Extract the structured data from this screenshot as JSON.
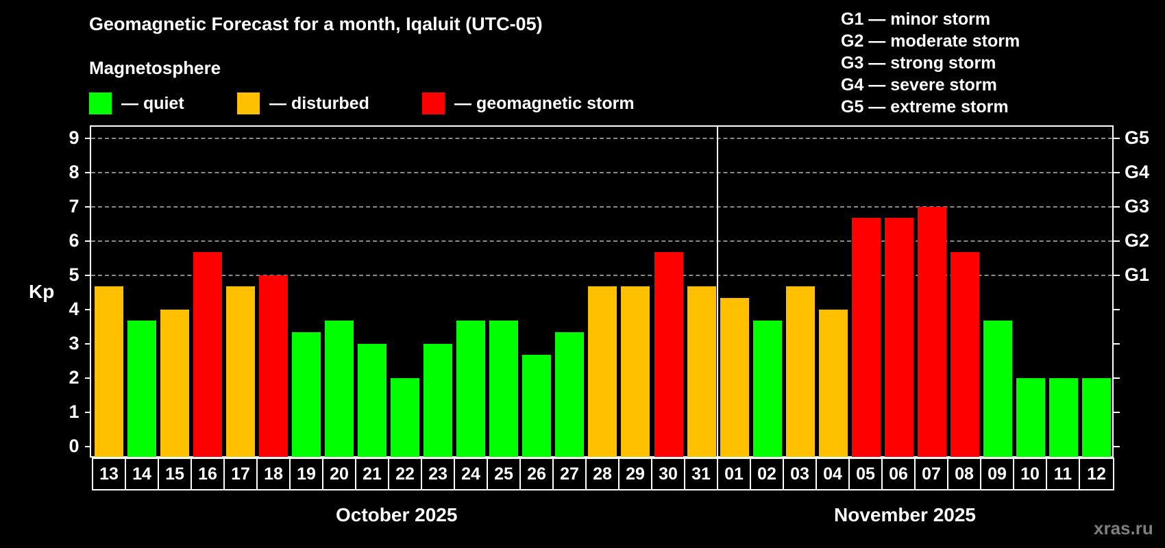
{
  "title": "Geomagnetic Forecast for a month, Iqaluit (UTC-05)",
  "magnetosphere_label": "Magnetosphere",
  "legend": [
    {
      "label": "— quiet",
      "color": "#00ff00"
    },
    {
      "label": "— disturbed",
      "color": "#ffc000"
    },
    {
      "label": "— geomagnetic storm",
      "color": "#ff0000"
    }
  ],
  "g_legend": [
    "G1 — minor storm",
    "G2 — moderate storm",
    "G3 — strong storm",
    "G4 — severe storm",
    "G5 — extreme storm"
  ],
  "watermark": "xras.ru",
  "colors": {
    "quiet": "#00ff00",
    "disturbed": "#ffc000",
    "storm": "#ff0000",
    "background": "#000000",
    "grid": "#8a8a8a"
  },
  "chart_data": {
    "type": "bar",
    "title": "Geomagnetic Forecast for a month, Iqaluit (UTC-05)",
    "xlabel": "",
    "ylabel": "Kp",
    "ylim": [
      0,
      9
    ],
    "yticks": [
      0,
      1,
      2,
      3,
      4,
      5,
      6,
      7,
      8,
      9
    ],
    "right_axis_ticks": [
      {
        "value": 5,
        "label": "G1"
      },
      {
        "value": 6,
        "label": "G2"
      },
      {
        "value": 7,
        "label": "G3"
      },
      {
        "value": 8,
        "label": "G4"
      },
      {
        "value": 9,
        "label": "G5"
      }
    ],
    "grid": "horizontal dashed at 5,6,7,8,9",
    "legend_position": "top",
    "months": [
      {
        "label": "October 2025",
        "days": [
          "13",
          "14",
          "15",
          "16",
          "17",
          "18",
          "19",
          "20",
          "21",
          "22",
          "23",
          "24",
          "25",
          "26",
          "27",
          "28",
          "29",
          "30",
          "31"
        ]
      },
      {
        "label": "November 2025",
        "days": [
          "01",
          "02",
          "03",
          "04",
          "05",
          "06",
          "07",
          "08",
          "09",
          "10",
          "11",
          "12"
        ]
      }
    ],
    "categories": [
      "13",
      "14",
      "15",
      "16",
      "17",
      "18",
      "19",
      "20",
      "21",
      "22",
      "23",
      "24",
      "25",
      "26",
      "27",
      "28",
      "29",
      "30",
      "31",
      "01",
      "02",
      "03",
      "04",
      "05",
      "06",
      "07",
      "08",
      "09",
      "10",
      "11",
      "12"
    ],
    "values": [
      4.67,
      3.67,
      4.0,
      5.67,
      4.67,
      5.0,
      3.33,
      3.67,
      3.0,
      2.0,
      3.0,
      3.67,
      3.67,
      2.67,
      3.33,
      4.67,
      4.67,
      5.67,
      4.67,
      4.33,
      3.67,
      4.67,
      4.0,
      6.67,
      6.67,
      7.0,
      5.67,
      3.67,
      2.0,
      2.0,
      2.0
    ],
    "status": [
      "disturbed",
      "quiet",
      "disturbed",
      "storm",
      "disturbed",
      "storm",
      "quiet",
      "quiet",
      "quiet",
      "quiet",
      "quiet",
      "quiet",
      "quiet",
      "quiet",
      "quiet",
      "disturbed",
      "disturbed",
      "storm",
      "disturbed",
      "disturbed",
      "quiet",
      "disturbed",
      "disturbed",
      "storm",
      "storm",
      "storm",
      "storm",
      "quiet",
      "quiet",
      "quiet",
      "quiet"
    ]
  }
}
